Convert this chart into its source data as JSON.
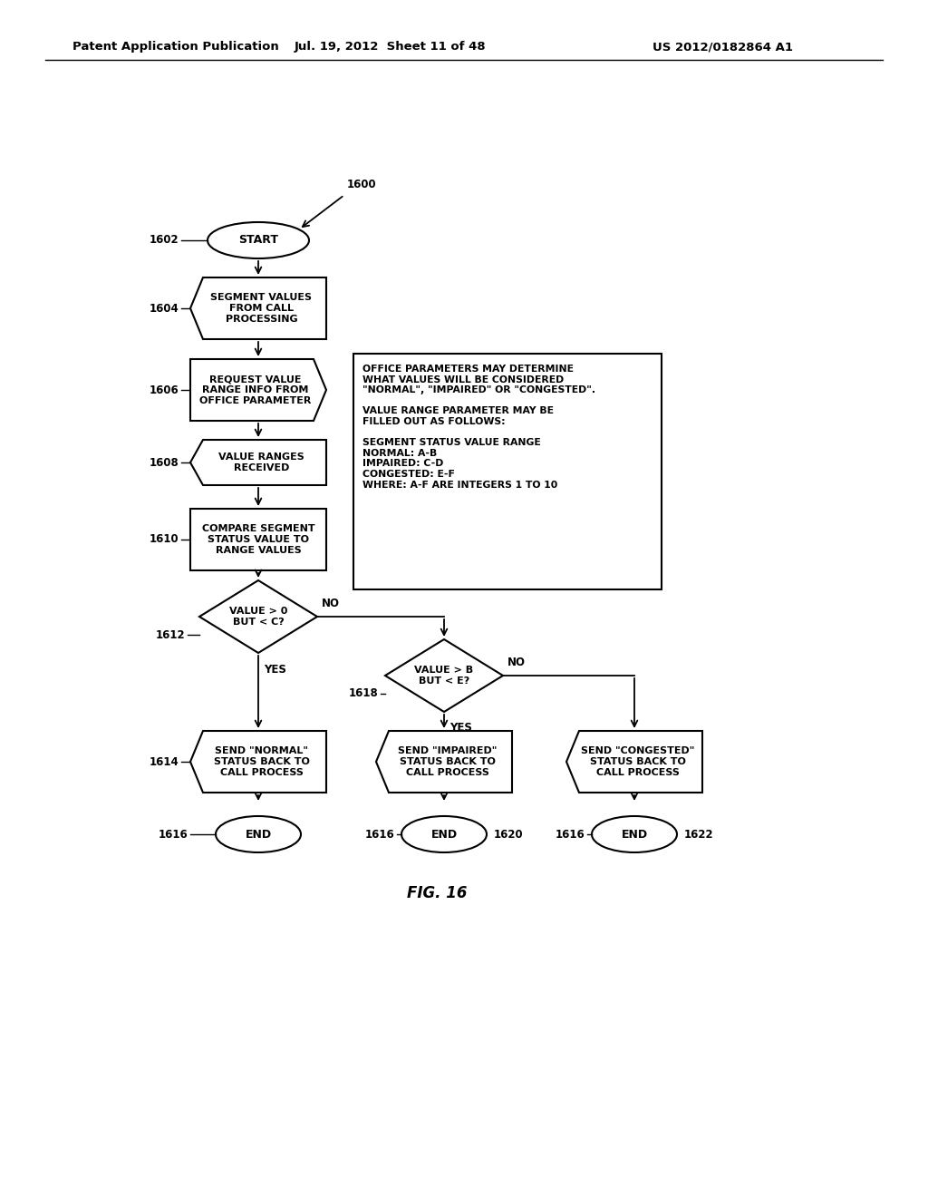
{
  "bg_color": "#ffffff",
  "header_left": "Patent Application Publication",
  "header_mid": "Jul. 19, 2012  Sheet 11 of 48",
  "header_right": "US 2012/0182864 A1",
  "fig_label": "FIG. 16",
  "note_text": "OFFICE PARAMETERS MAY DETERMINE\nWHAT VALUES WILL BE CONSIDERED\n\"NORMAL\", \"IMPAIRED\" OR \"CONGESTED\".\n\nVALUE RANGE PARAMETER MAY BE\nFILLED OUT AS FOLLOWS:\n\nSEGMENT STATUS VALUE RANGE\nNORMAL: A-B\nIMPAIRED: C-D\nCONGESTED: E-F\nWHERE: A-F ARE INTEGERS 1 TO 10"
}
